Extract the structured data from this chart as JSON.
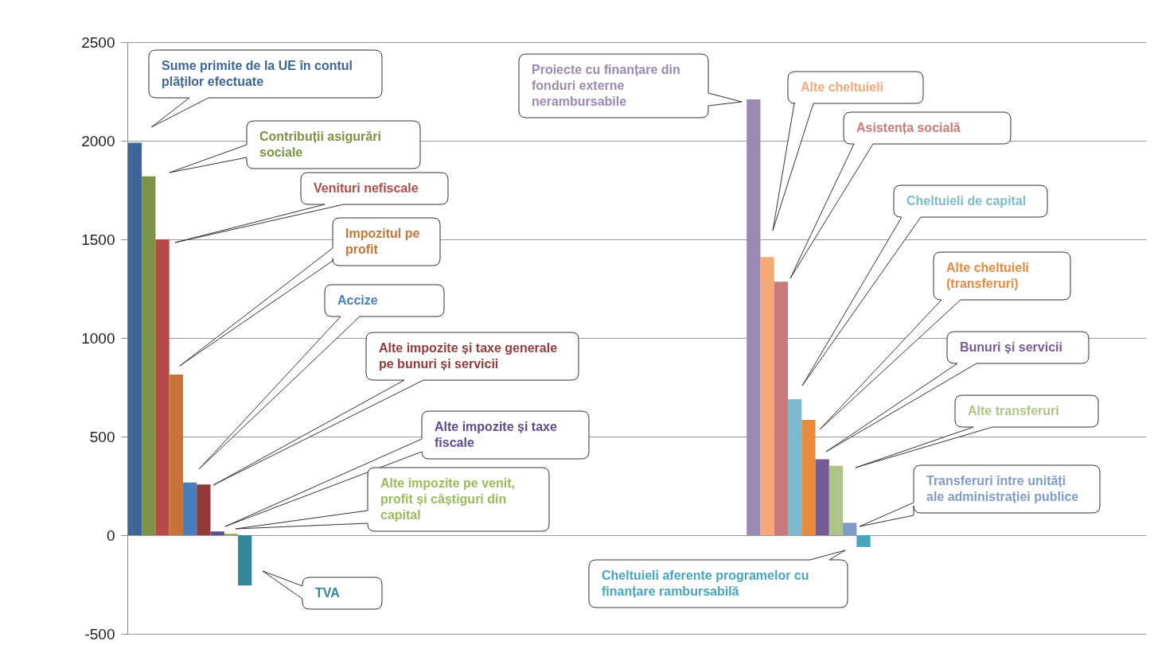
{
  "chart_data": {
    "type": "bar",
    "categories": [
      null,
      null
    ],
    "series": [
      {
        "name": "Sume primite de la UE în contul plăților efectuate",
        "color": "#3d6596",
        "values": [
          1990,
          null
        ]
      },
      {
        "name": "Contribuții asigurări sociale",
        "color": "#7a9445",
        "values": [
          1820,
          null
        ]
      },
      {
        "name": "Venituri nefiscale",
        "color": "#b54a47",
        "values": [
          1500,
          null
        ]
      },
      {
        "name": "Impozitul pe profit",
        "color": "#c57535",
        "values": [
          815,
          null
        ]
      },
      {
        "name": "Accize",
        "color": "#4a7ebb",
        "values": [
          267,
          null
        ]
      },
      {
        "name": "Alte impozite și taxe generale pe bunuri și servicii",
        "color": "#953a3a",
        "values": [
          257,
          null
        ]
      },
      {
        "name": "Alte impozite și taxe fiscale",
        "color": "#5f4b8b",
        "values": [
          19,
          null
        ]
      },
      {
        "name": "Alte impozite pe venit, profit și câștiguri din capital",
        "color": "#9bbb59",
        "values": [
          8,
          null
        ]
      },
      {
        "name": "TVA",
        "color": "#37879a",
        "values": [
          -255,
          null
        ]
      },
      {
        "name": "Proiecte cu finanțare din fonduri externe nerambursabile",
        "color": "#9b88b3",
        "values": [
          null,
          2210
        ]
      },
      {
        "name": "Alte cheltuieli",
        "color": "#f5a878",
        "values": [
          null,
          1410
        ]
      },
      {
        "name": "Asistența socială",
        "color": "#c97a7a",
        "values": [
          null,
          1285
        ]
      },
      {
        "name": "Cheltuieli de capital",
        "color": "#7bbbd0",
        "values": [
          null,
          690
        ]
      },
      {
        "name": "Alte cheltuieli (transferuri)",
        "color": "#e68a3e",
        "values": [
          null,
          585
        ]
      },
      {
        "name": "Bunuri și servicii",
        "color": "#765b97",
        "values": [
          null,
          385
        ]
      },
      {
        "name": "Alte transferuri",
        "color": "#aec685",
        "values": [
          null,
          352
        ]
      },
      {
        "name": "Transferuri între unități ale administrației publice",
        "color": "#7f9bc8",
        "values": [
          null,
          63
        ]
      },
      {
        "name": "Cheltuieli aferente programelor cu finanțare rambursabilă",
        "color": "#48a4bc",
        "values": [
          null,
          -60
        ]
      }
    ],
    "ylim": [
      -500,
      2500
    ],
    "yticks": [
      -500,
      0,
      500,
      1000,
      1500,
      2000,
      2500
    ],
    "grid": "y"
  }
}
